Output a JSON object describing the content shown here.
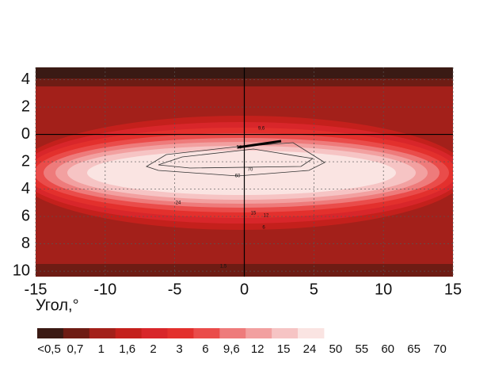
{
  "chart_data": {
    "type": "contour",
    "xlabel": "Угол,°",
    "xlim": [
      -15,
      15
    ],
    "xticks": [
      -15,
      -10,
      -5,
      0,
      5,
      10,
      15
    ],
    "ylim": [
      -10.4,
      4.9
    ],
    "yticks": [
      4,
      2,
      0,
      {
        "value": -2,
        "label": "2"
      },
      {
        "value": -4,
        "label": "4"
      },
      {
        "value": -6,
        "label": "6"
      },
      {
        "value": -8,
        "label": "8"
      },
      {
        "value": -10,
        "label": "10"
      }
    ],
    "grid": true,
    "colorbar": {
      "labels": [
        "<0,5",
        "0,7",
        "1",
        "1,6",
        "2",
        "3",
        "6",
        "9,6",
        "12",
        "15",
        "24",
        "50",
        "55",
        "60",
        "65",
        "70"
      ],
      "colors": [
        "#3a1a14",
        "#6e1c14",
        "#a3201a",
        "#c4201c",
        "#d8262a",
        "#e3302d",
        "#ea4c4a",
        "#ee7b7b",
        "#f2a0a0",
        "#f6c4c4",
        "#fae4e2"
      ]
    },
    "annotations": [
      "9,6",
      "50",
      "70",
      "60",
      "24",
      "15",
      "12",
      "6",
      "1,5"
    ]
  }
}
